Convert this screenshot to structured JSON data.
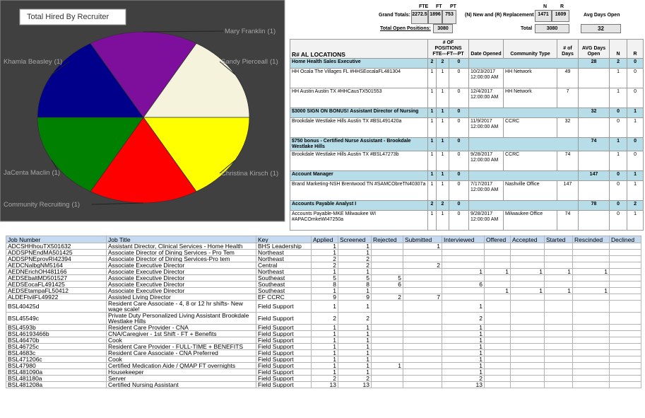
{
  "chart_data": {
    "type": "pie",
    "title": "Total Hired By Recruiter",
    "categories": [
      "Mary Franklin",
      "Sandy Pierceall",
      "Christina Kirsch",
      "Community Recruiting",
      "JaCenta Maclin",
      "Khamla Beasley"
    ],
    "values": [
      1,
      1,
      1,
      1,
      1,
      1
    ],
    "value_labels": [
      "(1)",
      "(1)",
      "(1)",
      "(1)",
      "(1)",
      "(1)"
    ],
    "colors": [
      "#7d0f9c",
      "#f5f3dc",
      "#ffff00",
      "#ff0000",
      "#008000",
      "#00008b"
    ]
  },
  "summary": {
    "position_headers": [
      "FTE",
      "FT",
      "PT"
    ],
    "grand_totals_label": "Grand Totals:",
    "grand_totals": [
      2272.5,
      1896,
      753
    ],
    "nr_label": "(N) New and (R) Replacement",
    "nr_headers": [
      "N",
      "R"
    ],
    "nr_values": [
      1471,
      1609
    ],
    "avg_days_label": "Avg Days Open",
    "total_open_label": "Total Open Positions:",
    "total_open": 3080,
    "total_label": "Total",
    "total": 3080,
    "avg_days": 32
  },
  "right_table": {
    "headers": [
      "R# AL LOCATIONS",
      "# OF POSITIONS FTE---FT---PT",
      "Date Opened",
      "Community Type",
      "# of Days",
      "AVG Days Open",
      "N",
      "R"
    ],
    "groups": [
      {
        "title": "Home Health Sales Executive",
        "positions": [
          2,
          2,
          0
        ],
        "avg_days": 28,
        "n": 2,
        "r": 0,
        "openings": [
          {
            "location": "HH Ocala The Villages FL #HHSEocalaFL481304",
            "positions": [
              1,
              1,
              0
            ],
            "date": "10/23/2017 12:00:00 AM",
            "community_type": "HH Network",
            "days": 49,
            "n": 1,
            "r": 0
          },
          {
            "location": "HH Austin Austin TX #HHCausTX501553",
            "positions": [
              1,
              1,
              0
            ],
            "date": "12/4/2017 12:00:00 AM",
            "community_type": "HH Network",
            "days": 7,
            "n": 1,
            "r": 0
          }
        ]
      },
      {
        "title": "$3000 SIGN ON BONUS! Assistant Director of Nursing",
        "positions": [
          1,
          1,
          0
        ],
        "avg_days": 32,
        "n": 0,
        "r": 1,
        "openings": [
          {
            "location": "Brookdale Westlake Hills Austin TX #BSL491420a",
            "positions": [
              1,
              1,
              0
            ],
            "date": "11/9/2017 12:00:00 AM",
            "community_type": "CCRC",
            "days": 32,
            "n": 0,
            "r": 1
          }
        ]
      },
      {
        "title": "$750 bonus - Certified Nurse Assistant - Brookdale Westlake Hills",
        "positions": [
          1,
          1,
          0
        ],
        "avg_days": 74,
        "n": 1,
        "r": 0,
        "openings": [
          {
            "location": "Brookdale Westlake Hills Austin TX #BSL47273b",
            "positions": [
              1,
              1,
              0
            ],
            "date": "9/28/2017 12:00:00 AM",
            "community_type": "CCRC",
            "days": 74,
            "n": 1,
            "r": 0
          }
        ]
      },
      {
        "title": "Account Manager",
        "positions": [
          1,
          1,
          0
        ],
        "avg_days": 147,
        "n": 0,
        "r": 1,
        "openings": [
          {
            "location": "Brand Marketing-NSH Brentwood TN #SAMCObreTN40307a",
            "positions": [
              1,
              1,
              0
            ],
            "date": "7/17/2017 12:00:00 AM",
            "community_type": "Nashville Office",
            "days": 147,
            "n": 0,
            "r": 1
          }
        ]
      },
      {
        "title": "Accounts Payable Analyst I",
        "positions": [
          2,
          2,
          0
        ],
        "avg_days": 78,
        "n": 0,
        "r": 2,
        "openings": [
          {
            "location": "Accounts Payable-MKE Milwaukee WI #APACOmkeWI47250a",
            "positions": [
              1,
              1,
              0
            ],
            "date": "9/28/2017 12:00:00 AM",
            "community_type": "Milwaukee Office",
            "days": 74,
            "n": 0,
            "r": 1
          }
        ]
      }
    ]
  },
  "bottom_table": {
    "columns": [
      "Job Number",
      "Job Title",
      "Key",
      "Applied",
      "Screened",
      "Rejected",
      "Submitted",
      "Interviewed",
      "Offered",
      "Accepted",
      "Started",
      "Rescinded",
      "Declined"
    ],
    "rows": [
      [
        "ADCSHHhouTX501632",
        "Assistant Director, Clinical Services - Home Health",
        "BHS Leadership",
        1,
        1,
        null,
        1,
        null,
        null,
        null,
        null,
        null,
        null
      ],
      [
        "ADDSPNEndMA501425",
        "Associate Director of Dining Services - Pro Tem",
        "Northeast",
        1,
        1,
        null,
        null,
        null,
        null,
        null,
        null,
        null,
        null
      ],
      [
        "ADDSPNEprovRI42394",
        "Associate Director of Dining Services-Pro tem",
        "Northeast",
        2,
        2,
        null,
        null,
        null,
        null,
        null,
        null,
        null,
        null
      ],
      [
        "AEDCNalbgNM5164",
        "Associate Executive Director",
        "Central",
        2,
        2,
        null,
        2,
        null,
        null,
        null,
        null,
        null,
        null
      ],
      [
        "AEDNErichOH481166",
        "Associate Executive Director",
        "Northeast",
        1,
        1,
        null,
        null,
        1,
        1,
        1,
        1,
        1,
        null
      ],
      [
        "AEDSEbaltMD501527",
        "Associate Executive Director",
        "Southeast",
        5,
        5,
        5,
        null,
        null,
        null,
        null,
        null,
        null,
        null
      ],
      [
        "AEDSEocaFL491425",
        "Associate Executive Director",
        "Southeast",
        8,
        8,
        6,
        null,
        6,
        null,
        null,
        null,
        null,
        null
      ],
      [
        "AEDSEtampaFL50412",
        "Associate Executive Director",
        "Southeast",
        1,
        1,
        null,
        null,
        null,
        1,
        1,
        1,
        1,
        null
      ],
      [
        "ALDEFtvilFL49922",
        "Assisted Living Director",
        "EF CCRC",
        9,
        9,
        2,
        7,
        null,
        null,
        null,
        null,
        null,
        null
      ],
      [
        "BSL40425d",
        "Resident Care Associate - 4, 8 or 12 hr shifts- New wage scale!",
        "Field Support",
        1,
        1,
        null,
        null,
        1,
        null,
        null,
        null,
        null,
        null
      ],
      [
        "BSL45549c",
        "Private Duty Personalized Living Assistant Brookdale Westlake Hills",
        "Field Support",
        2,
        2,
        null,
        null,
        2,
        null,
        null,
        null,
        null,
        null
      ],
      [
        "BSL4593b",
        "Resident Care Provider - CNA",
        "Field Support",
        1,
        1,
        null,
        null,
        1,
        null,
        null,
        null,
        null,
        null
      ],
      [
        "BSL46193466b",
        "CNA/Caregiver - 1st Shift - FT + Benefits",
        "Field Support",
        1,
        1,
        null,
        null,
        1,
        null,
        null,
        null,
        null,
        null
      ],
      [
        "BSL46470b",
        "Cook",
        "Field Support",
        1,
        1,
        null,
        null,
        1,
        null,
        null,
        null,
        null,
        null
      ],
      [
        "BSL46725c",
        "Resident Care Provider - FULL-TIME + BENEFITS",
        "Field Support",
        1,
        1,
        null,
        null,
        1,
        null,
        null,
        null,
        null,
        null
      ],
      [
        "BSL4683c",
        "Resident Care Associate - CNA Preferred",
        "Field Support",
        1,
        1,
        null,
        null,
        1,
        null,
        null,
        null,
        null,
        null
      ],
      [
        "BSL471206c",
        "Cook",
        "Field Support",
        1,
        1,
        null,
        null,
        1,
        null,
        null,
        null,
        null,
        null
      ],
      [
        "BSL47980",
        "Certified Medication Aide / QMAP FT overnights",
        "Field Support",
        1,
        1,
        1,
        null,
        1,
        null,
        null,
        null,
        null,
        null
      ],
      [
        "BSL481090a",
        "Housekeeper",
        "Field Support",
        1,
        1,
        null,
        null,
        1,
        null,
        null,
        null,
        null,
        null
      ],
      [
        "BSL481180a",
        "Server",
        "Field Support",
        2,
        2,
        null,
        null,
        2,
        null,
        null,
        null,
        null,
        null
      ],
      [
        "BSL481208a",
        "Certified Nursing Assistant",
        "Field Support",
        13,
        13,
        null,
        null,
        13,
        null,
        null,
        null,
        null,
        null
      ]
    ]
  }
}
